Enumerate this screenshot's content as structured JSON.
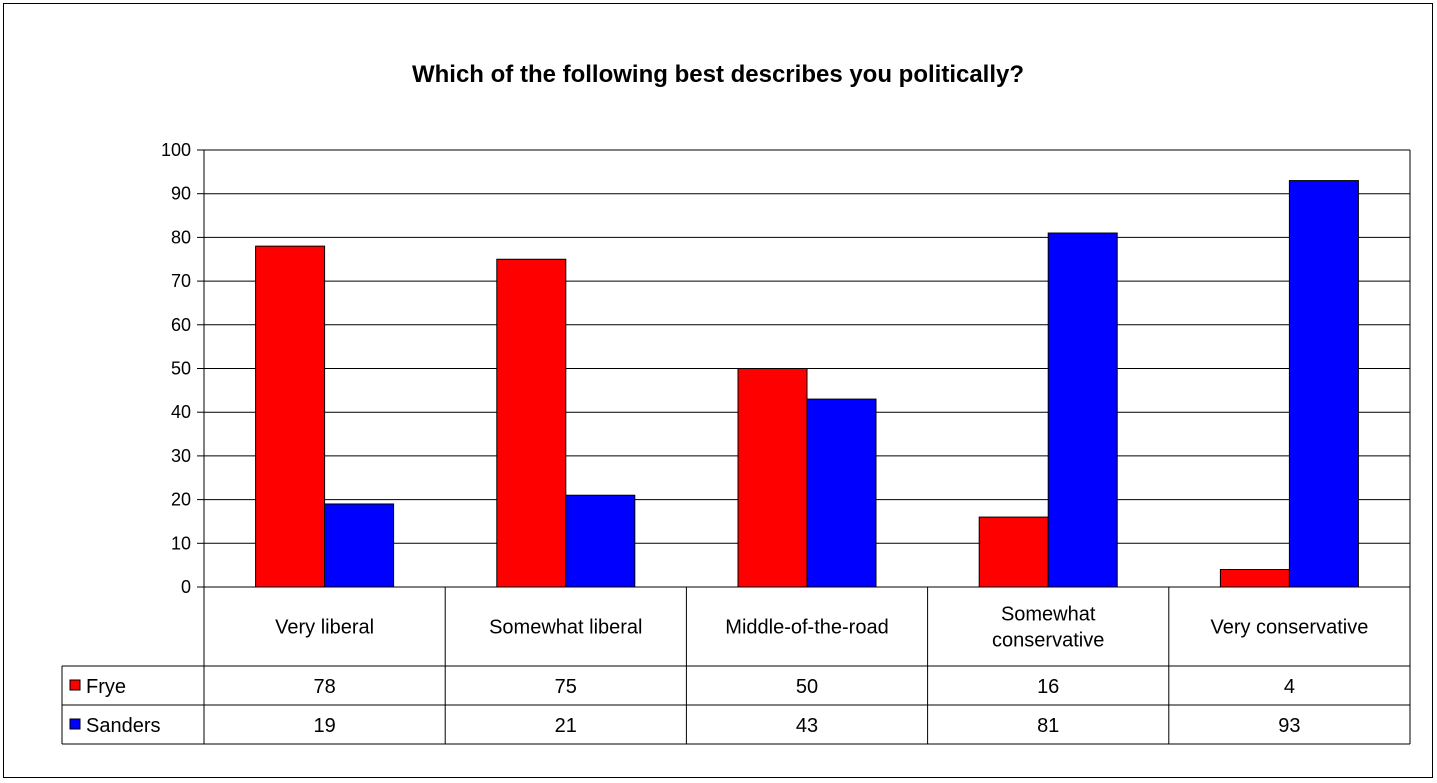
{
  "chart_data": {
    "type": "bar",
    "title": "Which of the following best describes you politically?",
    "xlabel": "",
    "ylabel": "",
    "ylim": [
      0,
      100
    ],
    "yticks": [
      0,
      10,
      20,
      30,
      40,
      50,
      60,
      70,
      80,
      90,
      100
    ],
    "grid": true,
    "categories": [
      [
        "Very liberal"
      ],
      [
        "Somewhat liberal"
      ],
      [
        "Middle-of-the-road"
      ],
      [
        "Somewhat",
        "conservative"
      ],
      [
        "Very conservative"
      ]
    ],
    "series": [
      {
        "name": "Frye",
        "color": "#ff0000",
        "values": [
          78,
          75,
          50,
          16,
          4
        ]
      },
      {
        "name": "Sanders",
        "color": "#0000ff",
        "values": [
          19,
          21,
          43,
          81,
          93
        ]
      }
    ],
    "data_table": [
      [
        "78",
        "75",
        "50",
        "16",
        "4"
      ],
      [
        "19",
        "21",
        "43",
        "81",
        "93"
      ]
    ]
  }
}
